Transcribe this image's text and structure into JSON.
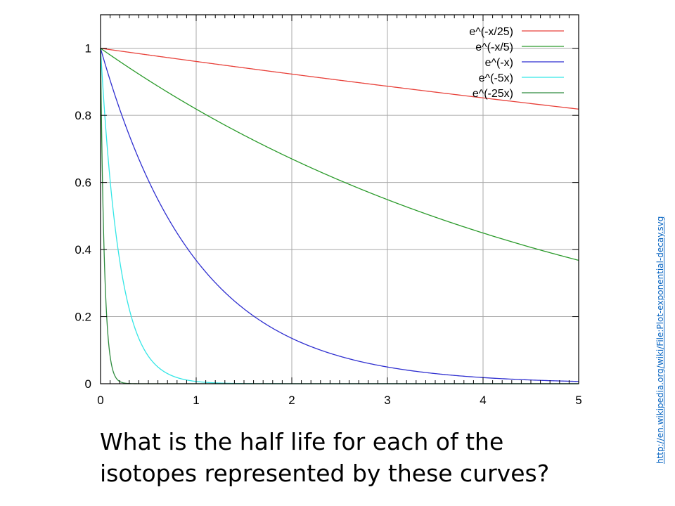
{
  "question": {
    "line1": "What is the half life for each of the",
    "line2": "isotopes represented by these curves?"
  },
  "source_link": "http://en.wikipedia.org/wiki/File:Plot-exponential-decay.svg",
  "chart_data": {
    "type": "line",
    "title": "",
    "xlabel": "",
    "ylabel": "",
    "xlim": [
      0,
      5
    ],
    "ylim": [
      0,
      1.1
    ],
    "grid": true,
    "legend_position": "top-right",
    "x_ticks": [
      "0",
      "1",
      "2",
      "3",
      "4",
      "5"
    ],
    "y_ticks": [
      "0",
      "0.2",
      "0.4",
      "0.6",
      "0.8",
      "1"
    ],
    "series": [
      {
        "name": "e^(-x/25)",
        "rate": 0.04,
        "color": "#e8413a"
      },
      {
        "name": "e^(-x/5)",
        "rate": 0.2,
        "color": "#2a9a2a"
      },
      {
        "name": "e^(-x)",
        "rate": 1,
        "color": "#2f2fd0"
      },
      {
        "name": "e^(-5x)",
        "rate": 5,
        "color": "#33e6e6"
      },
      {
        "name": "e^(-25x)",
        "rate": 25,
        "color": "#2e8b3e"
      }
    ]
  }
}
